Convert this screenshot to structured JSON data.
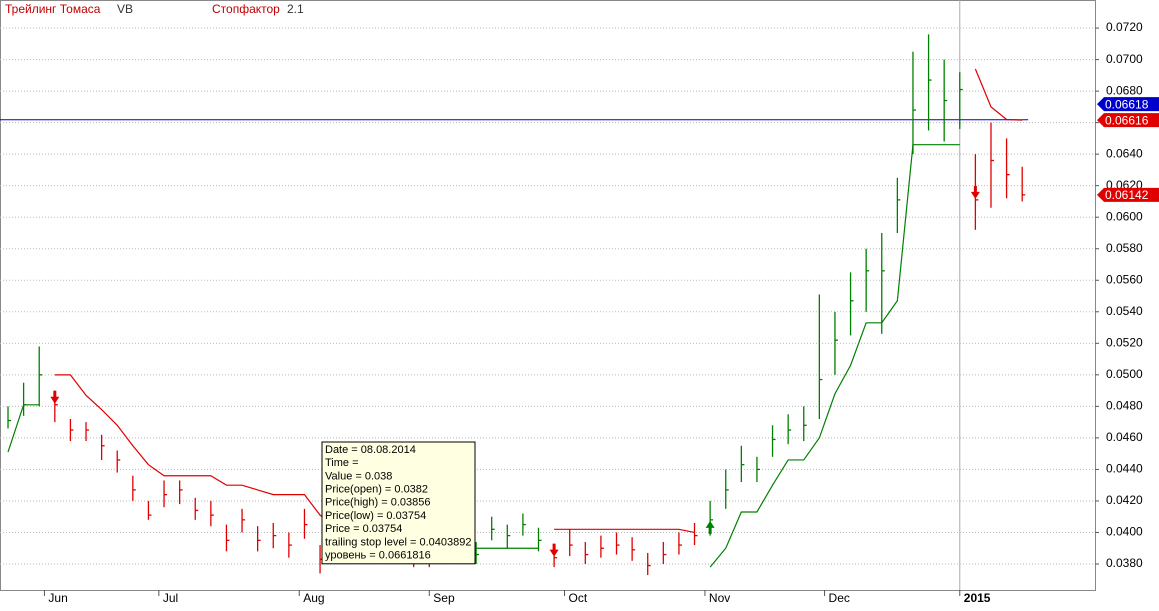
{
  "chart_data": {
    "type": "ohlc",
    "indicator": "Трейлинг Томаса",
    "symbol": "VB",
    "stop_factor_label": "Стопфактор",
    "stop_factor": 2.1,
    "xlim": [
      -1.54,
      209
    ],
    "ylim": [
      0.03635,
      0.07378
    ],
    "xticks": [
      {
        "value": 7,
        "label": "Jun"
      },
      {
        "value": 29,
        "label": "Jul"
      },
      {
        "value": 56,
        "label": "Aug"
      },
      {
        "value": 81,
        "label": "Sep"
      },
      {
        "value": 107,
        "label": "Oct"
      },
      {
        "value": 134,
        "label": "Nov"
      },
      {
        "value": 157,
        "label": "Dec"
      },
      {
        "value": 183,
        "label": "2015"
      }
    ],
    "yticks": [
      {
        "value": 0.038,
        "label": "0.0380"
      },
      {
        "value": 0.04,
        "label": "0.0400"
      },
      {
        "value": 0.042,
        "label": "0.0420"
      },
      {
        "value": 0.044,
        "label": "0.0440"
      },
      {
        "value": 0.046,
        "label": "0.0460"
      },
      {
        "value": 0.048,
        "label": "0.0480"
      },
      {
        "value": 0.05,
        "label": "0.0500"
      },
      {
        "value": 0.052,
        "label": "0.0520"
      },
      {
        "value": 0.054,
        "label": "0.0540"
      },
      {
        "value": 0.056,
        "label": "0.0560"
      },
      {
        "value": 0.058,
        "label": "0.0580"
      },
      {
        "value": 0.06,
        "label": "0.0600"
      },
      {
        "value": 0.062,
        "label": "0.0620"
      },
      {
        "value": 0.064,
        "label": "0.0640"
      },
      {
        "value": 0.066,
        "label": "0.0660"
      },
      {
        "value": 0.068,
        "label": "0.0680"
      },
      {
        "value": 0.07,
        "label": "0.0700"
      },
      {
        "value": 0.072,
        "label": "0.0720"
      }
    ],
    "grid": true,
    "x": [
      0,
      3,
      6,
      9,
      12,
      15,
      18,
      21,
      24,
      27,
      30,
      33,
      36,
      39,
      42,
      45,
      48,
      51,
      54,
      57,
      60,
      63,
      66,
      69,
      72,
      75,
      78,
      81,
      84,
      87,
      90,
      93,
      96,
      99,
      102,
      105,
      108,
      111,
      114,
      117,
      120,
      123,
      126,
      129,
      132,
      135,
      138,
      141,
      144,
      147,
      150,
      153,
      156,
      159,
      162,
      165,
      168,
      171,
      174,
      177,
      180,
      183,
      186,
      189,
      192,
      195
    ],
    "high": [
      0.048,
      0.0495,
      0.0518,
      0.049,
      0.0472,
      0.047,
      0.0462,
      0.0452,
      0.0436,
      0.042,
      0.0433,
      0.0433,
      0.0422,
      0.042,
      0.0405,
      0.0415,
      0.0404,
      0.0406,
      0.04,
      0.0415,
      0.0392,
      0.0394,
      0.0396,
      0.04,
      0.0393,
      0.0396,
      0.0391,
      0.0391,
      0.0396,
      0.04,
      0.0394,
      0.041,
      0.0405,
      0.0412,
      0.0403,
      0.0392,
      0.0402,
      0.0394,
      0.0398,
      0.04,
      0.0397,
      0.0387,
      0.0394,
      0.04,
      0.0406,
      0.042,
      0.044,
      0.0455,
      0.0448,
      0.0468,
      0.0475,
      0.048,
      0.0551,
      0.054,
      0.0565,
      0.058,
      0.059,
      0.0625,
      0.0705,
      0.0716,
      0.07,
      0.0692,
      0.064,
      0.066,
      0.065,
      0.0632
    ],
    "low": [
      0.0466,
      0.0474,
      0.048,
      0.047,
      0.0458,
      0.0458,
      0.0446,
      0.0438,
      0.042,
      0.0408,
      0.0416,
      0.0418,
      0.0408,
      0.0404,
      0.0388,
      0.04,
      0.0388,
      0.039,
      0.0384,
      0.0396,
      0.0374,
      0.038,
      0.0382,
      0.0386,
      0.038,
      0.0382,
      0.0378,
      0.0378,
      0.0382,
      0.0386,
      0.038,
      0.0395,
      0.039,
      0.0398,
      0.0388,
      0.0378,
      0.0385,
      0.038,
      0.0384,
      0.0386,
      0.0382,
      0.0373,
      0.038,
      0.0386,
      0.0392,
      0.0398,
      0.0415,
      0.0432,
      0.0432,
      0.0448,
      0.0456,
      0.0458,
      0.0472,
      0.05,
      0.0525,
      0.054,
      0.0526,
      0.059,
      0.064,
      0.0655,
      0.0648,
      0.0656,
      0.0592,
      0.0606,
      0.0612,
      0.061
    ],
    "close": [
      0.0471,
      0.0481,
      0.05,
      0.0481,
      0.0465,
      0.0465,
      0.0455,
      0.0446,
      0.0427,
      0.0411,
      0.0424,
      0.0427,
      0.0414,
      0.0411,
      0.0395,
      0.0408,
      0.0395,
      0.0398,
      0.0392,
      0.0405,
      0.0383,
      0.0386,
      0.0388,
      0.0392,
      0.0385,
      0.0388,
      0.0383,
      0.0383,
      0.0388,
      0.0392,
      0.0386,
      0.0402,
      0.0398,
      0.0405,
      0.0395,
      0.0384,
      0.0392,
      0.0386,
      0.039,
      0.0392,
      0.0389,
      0.0379,
      0.0386,
      0.0392,
      0.0398,
      0.0408,
      0.0427,
      0.0443,
      0.044,
      0.0459,
      0.0465,
      0.0468,
      0.0497,
      0.0522,
      0.0547,
      0.0566,
      0.0566,
      0.0611,
      0.0668,
      0.0687,
      0.0674,
      0.0681,
      0.0611,
      0.0636,
      0.0627,
      0.06142
    ],
    "series": [
      {
        "color": "#008000",
        "values": [
          0.0451,
          0.0481,
          0.0481,
          null,
          null,
          null,
          null,
          null,
          null,
          null,
          null,
          null,
          null,
          null,
          null,
          null,
          null,
          null,
          null,
          null,
          null,
          null,
          null,
          null,
          null,
          null,
          null,
          null,
          0.0388,
          0.039,
          0.039,
          0.039,
          0.039,
          0.039,
          0.039,
          null,
          null,
          null,
          null,
          null,
          null,
          null,
          null,
          null,
          null,
          0.0378,
          0.039,
          0.0413,
          0.0413,
          0.043,
          0.0446,
          0.0446,
          0.046,
          0.0488,
          0.0506,
          0.0533,
          0.0533,
          0.0547,
          0.0646,
          0.0646,
          0.0646,
          0.0646,
          null,
          null,
          null,
          null
        ]
      },
      {
        "color": "#e00000",
        "values": [
          null,
          null,
          null,
          0.05,
          0.05,
          0.0487,
          0.0478,
          0.0468,
          0.0455,
          0.0443,
          0.0436,
          0.0436,
          0.0436,
          0.0436,
          0.043,
          0.043,
          0.0427,
          0.0424,
          0.0424,
          0.0424,
          0.0411,
          0.0404,
          0.0404,
          0.0404,
          0.0404,
          0.04,
          0.04,
          0.04,
          null,
          null,
          null,
          null,
          null,
          null,
          null,
          0.0402,
          0.0402,
          0.0402,
          0.0402,
          0.0402,
          0.0402,
          0.0402,
          0.0402,
          0.0402,
          0.04,
          null,
          null,
          null,
          null,
          null,
          null,
          null,
          null,
          null,
          null,
          null,
          null,
          null,
          null,
          null,
          null,
          null,
          0.0694,
          0.067,
          0.0662,
          0.06616
        ]
      }
    ],
    "sell_signals": [
      9,
      105,
      186
    ],
    "buy_signals": [
      135
    ],
    "level": 0.0661816,
    "level_color": "#0000cc",
    "price_markers": [
      {
        "value": 0.06616,
        "color": "#e00000"
      },
      {
        "value": 0.06618,
        "color": "#0000cc"
      },
      {
        "value": 0.06142,
        "color": "#e00000"
      }
    ],
    "tooltip": [
      "Date = 08.08.2014",
      "Time = ",
      "Value = 0.038",
      "Price(open) = 0.0382",
      "Price(high) = 0.03856",
      "Price(low) = 0.03754",
      "Price = 0.03754",
      "trailing stop level = 0.0403892",
      "уровень = 0.0661816"
    ]
  }
}
